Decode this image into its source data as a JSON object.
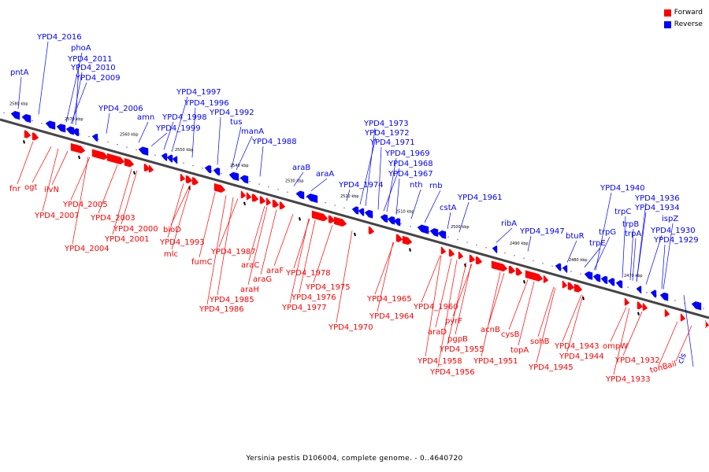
{
  "legend": {
    "forward_label": "Forward",
    "reverse_label": "Reverse",
    "forward_color": "#ff0000",
    "reverse_color": "#0000ff"
  },
  "caption": "Yersinia pestis D106004, complete genome. - 0..4640720",
  "ticks": [
    "2580 kbp",
    "2570 kbp",
    "2560 kbp",
    "2550 kbp",
    "2540 kbp",
    "2530 kbp",
    "2520 kbp",
    "2510 kbp",
    "2500 kbp",
    "2490 kbp",
    "2480 kbp",
    "2470 kbp"
  ],
  "reverse_genes": [
    "pntA",
    "YPD4_2016",
    "phoA",
    "YPD4_2011",
    "YPD4_2010",
    "YPD4_2009",
    "YPD4_2006",
    "amn",
    "YPD4_1997",
    "YPD4_1996",
    "YPD4_1998",
    "YPD4_1999",
    "YPD4_1992",
    "tus",
    "manA",
    "YPD4_1988",
    "araB",
    "araA",
    "YPD4_1974",
    "YPD4_1973",
    "YPD4_1972",
    "YPD4_1971",
    "YPD4_1969",
    "YPD4_1968",
    "YPD4_1967",
    "nth",
    "rnb",
    "cstA",
    "YPD4_1961",
    "ribA",
    "YPD4_1947",
    "btuR",
    "YPD4_1940",
    "trpC",
    "YPD4_1936",
    "trpG",
    "trpB",
    "YPD4_1934",
    "trpE",
    "trpA",
    "ispZ",
    "YPD4_1930",
    "YPD4_1929",
    "cls"
  ],
  "forward_genes": [
    "fnr",
    "ogt",
    "ilvN",
    "YPD4_2005",
    "YPD4_2007",
    "YPD4_2003",
    "YPD4_2000",
    "YPD4_2001",
    "YPD4_2004",
    "bioD",
    "YPD4_1993",
    "mlc",
    "fumC",
    "YPD4_1987",
    "araC",
    "araF",
    "araG",
    "araH",
    "YPD4_1985",
    "YPD4_1986",
    "YPD4_1978",
    "YPD4_1975",
    "YPD4_1976",
    "YPD4_1977",
    "YPD4_1970",
    "YPD4_1965",
    "YPD4_1964",
    "YPD4_1960",
    "araD",
    "pyrF",
    "pgpB",
    "YPD4_1955",
    "YPD4_1958",
    "YPD4_1956",
    "acnB",
    "cysB",
    "topA",
    "YPD4_1951",
    "sohB",
    "YPD4_1943",
    "YPD4_1944",
    "YPD4_1945",
    "ompW",
    "YPD4_1932",
    "YPD4_1933",
    "tonB",
    "ail"
  ]
}
